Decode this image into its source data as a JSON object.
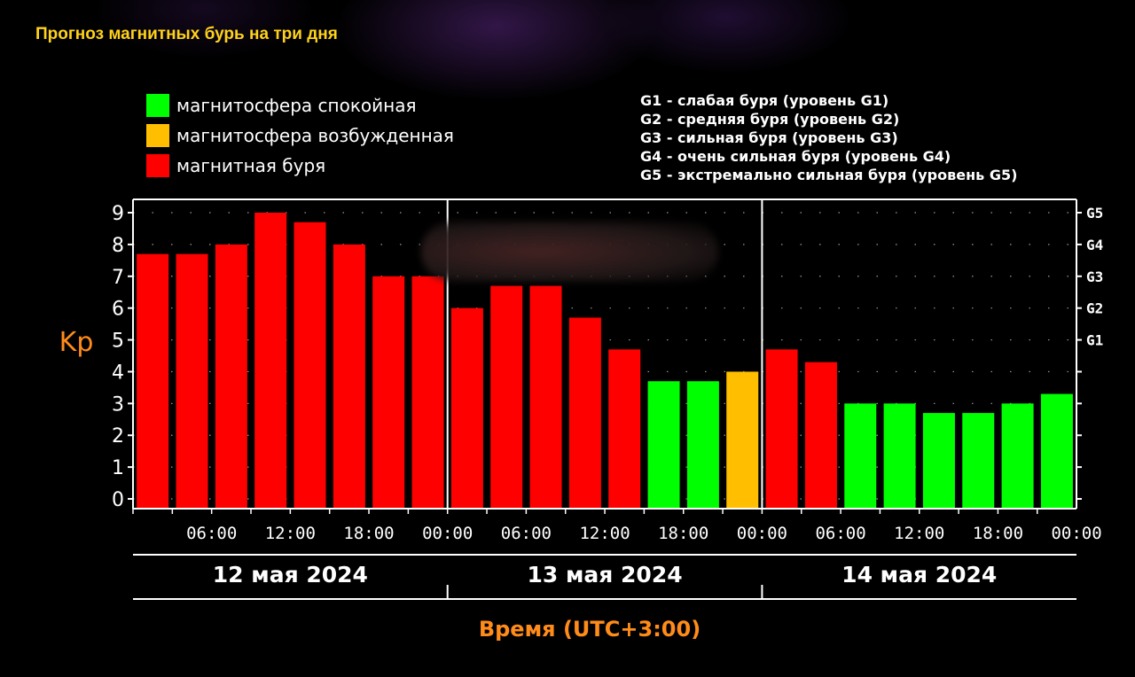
{
  "title": "Прогноз магнитных бурь на три дня",
  "legend": [
    {
      "label": "магнитосфера спокойная",
      "color": "#00ff00"
    },
    {
      "label": "магнитосфера возбужденная",
      "color": "#ffbf00"
    },
    {
      "label": "магнитная буря",
      "color": "#ff0000"
    }
  ],
  "g_levels": [
    "G1 - слабая буря (уровень G1)",
    "G2 - средняя буря (уровень G2)",
    "G3 - сильная буря (уровень G3)",
    "G4 - очень сильная буря (уровень G4)",
    "G5 - экстремально сильная буря (уровень G5)"
  ],
  "colors": {
    "quiet": "#00ff00",
    "active": "#ffbf00",
    "storm": "#ff0000",
    "axis": "#ffffff",
    "label_orange": "#ff8c1a"
  },
  "chart_data": {
    "type": "bar",
    "ylabel": "Kp",
    "xlabel": "Время (UTC+3:00)",
    "ylim": [
      0,
      9
    ],
    "yticks": [
      "0",
      "1",
      "2",
      "3",
      "4",
      "5",
      "6",
      "7",
      "8",
      "9"
    ],
    "right_ticks": [
      {
        "label": "G1",
        "value": 5
      },
      {
        "label": "G2",
        "value": 6
      },
      {
        "label": "G3",
        "value": 7
      },
      {
        "label": "G4",
        "value": 8
      },
      {
        "label": "G5",
        "value": 9
      }
    ],
    "time_ticks": [
      "06:00",
      "12:00",
      "18:00",
      "00:00",
      "06:00",
      "12:00",
      "18:00",
      "00:00",
      "06:00",
      "12:00",
      "18:00",
      "00:00"
    ],
    "days": [
      "12 мая 2024",
      "13 мая 2024",
      "14 мая 2024"
    ],
    "values": [
      7.7,
      7.7,
      8.0,
      9.0,
      8.7,
      8.0,
      7.0,
      7.0,
      6.0,
      6.7,
      6.7,
      5.7,
      4.7,
      3.7,
      3.7,
      4.0,
      4.7,
      4.3,
      3.0,
      3.0,
      2.7,
      2.7,
      3.0,
      3.3
    ],
    "levels": [
      "storm",
      "storm",
      "storm",
      "storm",
      "storm",
      "storm",
      "storm",
      "storm",
      "storm",
      "storm",
      "storm",
      "storm",
      "storm",
      "quiet",
      "quiet",
      "active",
      "storm",
      "storm",
      "quiet",
      "quiet",
      "quiet",
      "quiet",
      "quiet",
      "quiet"
    ],
    "grid": true,
    "legend_position": "top-left"
  }
}
